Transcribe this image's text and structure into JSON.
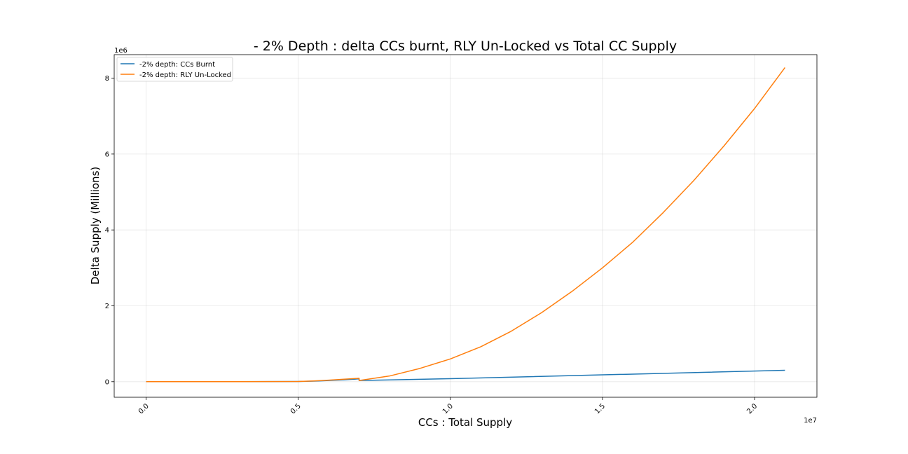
{
  "chart_data": {
    "type": "line",
    "title": "- 2% Depth : delta CCs burnt, RLY Un-Locked vs Total CC Supply",
    "xlabel": "CCs : Total Supply",
    "ylabel": "Delta Supply (Millions)",
    "x_offset_label": "1e7",
    "y_offset_label": "1e6",
    "xlim": [
      -0.105,
      2.205
    ],
    "ylim": [
      -0.41,
      8.62
    ],
    "x_ticks": [
      0.0,
      0.5,
      1.0,
      1.5,
      2.0
    ],
    "x_tick_labels": [
      "0.0",
      "0.5",
      "1.0",
      "1.5",
      "2.0"
    ],
    "y_ticks": [
      0,
      2,
      4,
      6,
      8
    ],
    "y_tick_labels": [
      "0",
      "2",
      "4",
      "6",
      "8"
    ],
    "grid": true,
    "legend_position": "top-left",
    "series": [
      {
        "name": "-2% depth: CCs Burnt",
        "color": "#1f77b4",
        "x": [
          0.0,
          0.3,
          0.5,
          0.55,
          0.6,
          0.65,
          0.7,
          0.7001,
          1.0,
          1.5,
          2.1
        ],
        "y": [
          0.0,
          0.0,
          0.005,
          0.015,
          0.03,
          0.05,
          0.075,
          0.03,
          0.08,
          0.18,
          0.3
        ]
      },
      {
        "name": "-2% depth: RLY Un-Locked",
        "color": "#ff7f0e",
        "x": [
          0.0,
          0.3,
          0.5,
          0.55,
          0.6,
          0.65,
          0.7,
          0.7001,
          0.8,
          0.9,
          1.0,
          1.1,
          1.2,
          1.3,
          1.4,
          1.5,
          1.6,
          1.7,
          1.8,
          1.9,
          2.0,
          2.1
        ],
        "y": [
          0.0,
          0.0,
          0.005,
          0.02,
          0.04,
          0.065,
          0.09,
          0.03,
          0.15,
          0.35,
          0.6,
          0.92,
          1.33,
          1.82,
          2.38,
          3.0,
          3.68,
          4.46,
          5.3,
          6.22,
          7.2,
          8.28
        ]
      }
    ]
  }
}
